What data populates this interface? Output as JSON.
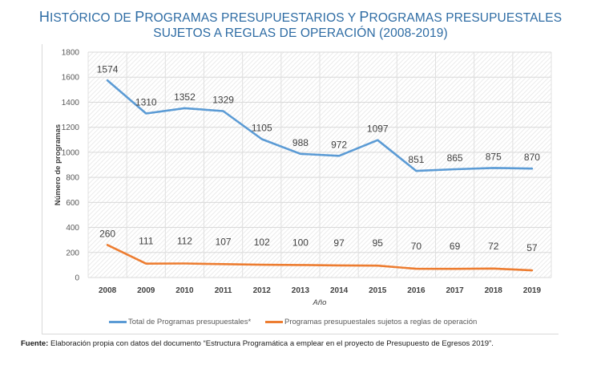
{
  "title": {
    "line1": "Histórico de Programas presupuestarios y Programas presupuestales",
    "line2": "sujetos a reglas de operación (2008-2019)"
  },
  "colors": {
    "title": "#2e6ca4",
    "series_total": "#5b9bd5",
    "series_rop": "#ed7d31"
  },
  "chart_data": {
    "type": "line",
    "title": "Histórico de Programas presupuestarios y Programas presupuestales sujetos a reglas de operación (2008-2019)",
    "xlabel": "Año",
    "ylabel": "Número de programas",
    "categories": [
      "2008",
      "2009",
      "2010",
      "2011",
      "2012",
      "2013",
      "2014",
      "2015",
      "2016",
      "2017",
      "2018",
      "2019"
    ],
    "ylim": [
      0,
      1800
    ],
    "yticks": [
      0,
      200,
      400,
      600,
      800,
      1000,
      1200,
      1400,
      1600,
      1800
    ],
    "grid": true,
    "legend_position": "bottom",
    "series": [
      {
        "name": "Total de Programas presupuestales*",
        "color": "#5b9bd5",
        "values": [
          1574,
          1310,
          1352,
          1329,
          1105,
          988,
          972,
          1097,
          851,
          865,
          875,
          870
        ]
      },
      {
        "name": "Programas presupuestales sujetos a reglas de operación",
        "color": "#ed7d31",
        "values": [
          260,
          111,
          112,
          107,
          102,
          100,
          97,
          95,
          70,
          69,
          72,
          57
        ]
      }
    ]
  },
  "source": {
    "label": "Fuente:",
    "text": " Elaboración propia con datos del documento “Estructura Programática a emplear en el proyecto de Presupuesto de Egresos 2019”."
  }
}
